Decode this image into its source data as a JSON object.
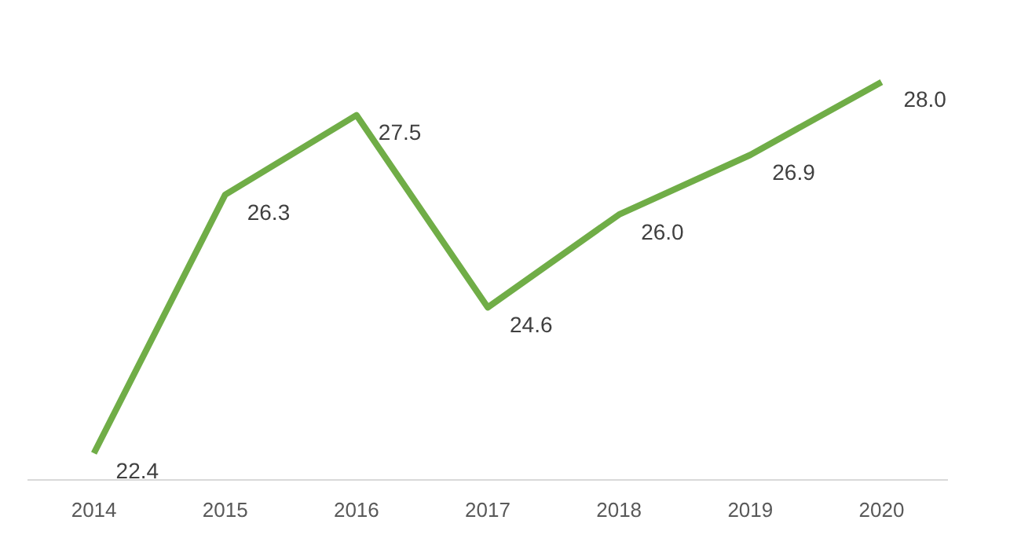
{
  "chart_data": {
    "type": "line",
    "categories": [
      "2014",
      "2015",
      "2016",
      "2017",
      "2018",
      "2019",
      "2020"
    ],
    "series": [
      {
        "color": "#70ad47",
        "values": [
          22.4,
          26.3,
          27.5,
          24.6,
          26.0,
          26.9,
          28.0
        ],
        "value_labels": [
          "22.4",
          "26.3",
          "27.5",
          "24.6",
          "26.0",
          "26.9",
          "28.0"
        ]
      }
    ],
    "tick_labels": "x",
    "grid": false,
    "legend": false,
    "marker": "none",
    "line_style": "solid"
  }
}
